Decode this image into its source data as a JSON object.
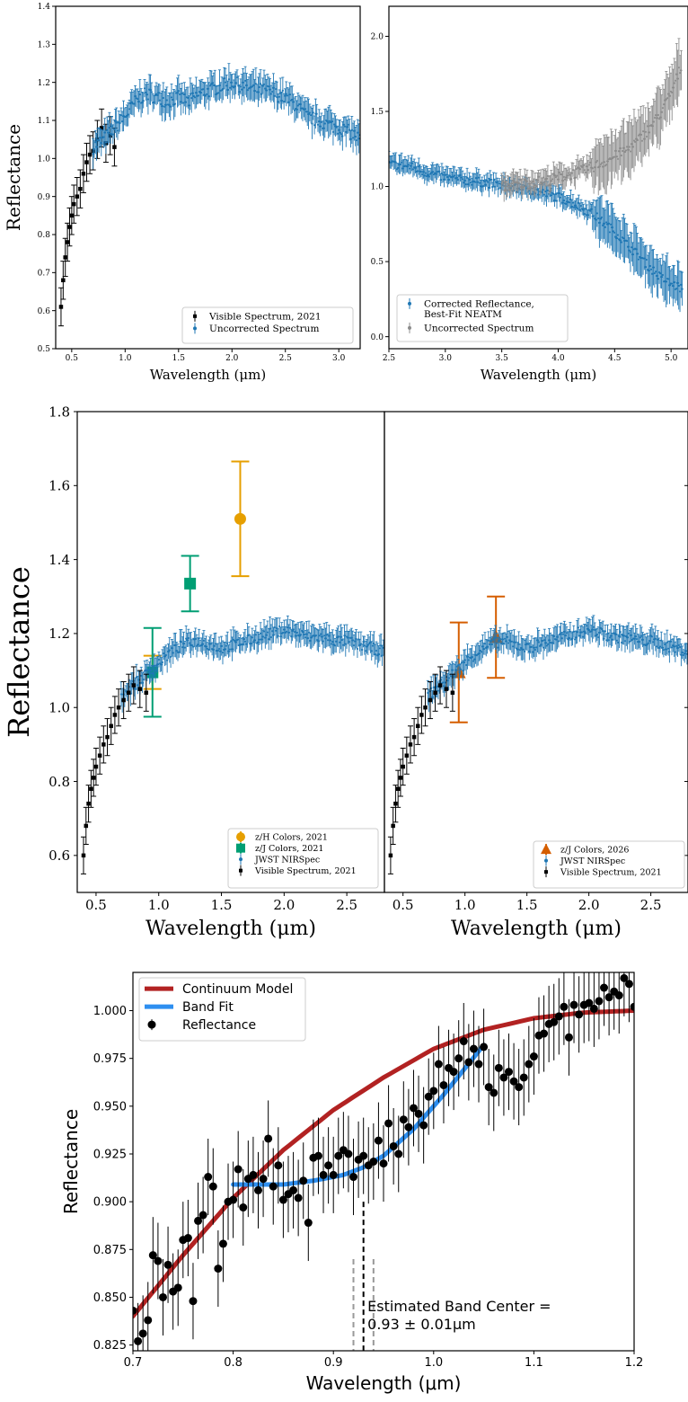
{
  "chart_data": [
    {
      "panel": "a-left",
      "type": "scatter",
      "xlabel": "Wavelength (μm)",
      "ylabel": "Reflectance",
      "xlim": [
        0.35,
        3.2
      ],
      "ylim": [
        0.5,
        1.4
      ],
      "xticks": [
        "0.5",
        "1.0",
        "1.5",
        "2.0",
        "2.5",
        "3.0"
      ],
      "yticks": [
        "0.5",
        "0.6",
        "0.7",
        "0.8",
        "0.9",
        "1.0",
        "1.1",
        "1.2",
        "1.3",
        "1.4"
      ],
      "legend_position": "lower-right",
      "series": [
        {
          "name": "Visible Spectrum, 2021",
          "color": "#000000",
          "marker": "square",
          "x": [
            0.4,
            0.42,
            0.44,
            0.46,
            0.48,
            0.5,
            0.52,
            0.55,
            0.58,
            0.61,
            0.64,
            0.67,
            0.7,
            0.74,
            0.78,
            0.82,
            0.86,
            0.9
          ],
          "y": [
            0.61,
            0.68,
            0.74,
            0.78,
            0.82,
            0.85,
            0.88,
            0.9,
            0.92,
            0.96,
            0.99,
            1.01,
            1.02,
            1.05,
            1.08,
            1.04,
            1.06,
            1.03
          ],
          "err": 0.05
        },
        {
          "name": "Uncorrected Spectrum",
          "color": "#1f77b4",
          "marker": "dot",
          "x": [
            0.7,
            0.8,
            0.9,
            1.0,
            1.1,
            1.2,
            1.3,
            1.4,
            1.5,
            1.6,
            1.7,
            1.8,
            1.9,
            2.0,
            2.1,
            2.2,
            2.3,
            2.4,
            2.5,
            2.6,
            2.7,
            2.8,
            2.9,
            3.0,
            3.1,
            3.2
          ],
          "y": [
            1.03,
            1.05,
            1.08,
            1.11,
            1.15,
            1.17,
            1.16,
            1.15,
            1.16,
            1.15,
            1.17,
            1.18,
            1.19,
            1.2,
            1.19,
            1.18,
            1.18,
            1.17,
            1.16,
            1.14,
            1.11,
            1.1,
            1.09,
            1.08,
            1.07,
            1.05
          ],
          "err": 0.03
        }
      ]
    },
    {
      "panel": "a-right",
      "type": "scatter",
      "xlabel": "Wavelength (μm)",
      "ylabel": "",
      "xlim": [
        2.5,
        5.15
      ],
      "ylim": [
        -0.08,
        2.2
      ],
      "xticks": [
        "2.5",
        "3.0",
        "3.5",
        "4.0",
        "4.5",
        "5.0"
      ],
      "yticks": [
        "0.0",
        "0.5",
        "1.0",
        "1.5",
        "2.0"
      ],
      "legend_position": "lower-left",
      "series": [
        {
          "name": "Corrected Reflectance,\nBest-Fit NEATM",
          "color": "#1f77b4",
          "marker": "dot",
          "x": [
            2.5,
            2.6,
            2.7,
            2.8,
            2.9,
            3.0,
            3.1,
            3.2,
            3.3,
            3.4,
            3.5,
            3.6,
            3.7,
            3.8,
            3.9,
            4.0,
            4.1,
            4.2,
            4.3,
            4.4,
            4.5,
            4.6,
            4.7,
            4.8,
            4.9,
            5.0,
            5.1
          ],
          "y": [
            1.15,
            1.14,
            1.13,
            1.1,
            1.08,
            1.06,
            1.05,
            1.04,
            1.03,
            1.02,
            1.0,
            0.99,
            0.98,
            0.97,
            0.95,
            0.93,
            0.9,
            0.86,
            0.82,
            0.76,
            0.7,
            0.62,
            0.55,
            0.47,
            0.4,
            0.35,
            0.32
          ],
          "err": 0.05
        },
        {
          "name": "Uncorrected Spectrum",
          "color": "#8c8c8c",
          "marker": "dot",
          "x": [
            3.5,
            3.6,
            3.7,
            3.8,
            3.9,
            4.0,
            4.1,
            4.2,
            4.3,
            4.4,
            4.5,
            4.6,
            4.7,
            4.8,
            4.9,
            5.0,
            5.1
          ],
          "y": [
            1.0,
            1.01,
            1.02,
            1.03,
            1.04,
            1.06,
            1.08,
            1.1,
            1.13,
            1.16,
            1.2,
            1.24,
            1.3,
            1.38,
            1.48,
            1.62,
            1.82
          ],
          "err": 0.06
        }
      ]
    },
    {
      "panel": "b-left",
      "type": "scatter",
      "xlabel": "Wavelength (μm)",
      "ylabel": "Reflectance",
      "xlim": [
        0.35,
        2.8
      ],
      "ylim": [
        0.5,
        1.8
      ],
      "xticks": [
        "0.5",
        "1.0",
        "1.5",
        "2.0",
        "2.5"
      ],
      "yticks": [
        "0.6",
        "0.8",
        "1.0",
        "1.2",
        "1.4",
        "1.6",
        "1.8"
      ],
      "legend_position": "lower-right",
      "series": [
        {
          "name": "z/H Colors, 2021",
          "color": "#e69f00",
          "marker": "circle",
          "x": [
            0.95,
            1.65
          ],
          "y": [
            1.095,
            1.51
          ],
          "err": [
            0.045,
            0.155
          ]
        },
        {
          "name": "z/J Colors, 2021",
          "color": "#009e73",
          "marker": "square",
          "x": [
            0.95,
            1.25
          ],
          "y": [
            1.095,
            1.335
          ],
          "err": [
            0.12,
            0.075
          ]
        },
        {
          "name": "JWST NIRSpec",
          "color": "#1f77b4",
          "marker": "dot",
          "x": [
            0.7,
            0.8,
            0.9,
            1.0,
            1.1,
            1.2,
            1.3,
            1.4,
            1.5,
            1.6,
            1.7,
            1.8,
            1.9,
            2.0,
            2.1,
            2.2,
            2.3,
            2.4,
            2.5,
            2.6,
            2.7,
            2.8
          ],
          "y": [
            1.03,
            1.06,
            1.09,
            1.12,
            1.15,
            1.17,
            1.18,
            1.17,
            1.16,
            1.17,
            1.18,
            1.19,
            1.2,
            1.21,
            1.2,
            1.19,
            1.19,
            1.18,
            1.18,
            1.17,
            1.16,
            1.15
          ],
          "err": 0.025
        },
        {
          "name": "Visible Spectrum, 2021",
          "color": "#000000",
          "marker": "square",
          "x": [
            0.4,
            0.42,
            0.44,
            0.46,
            0.48,
            0.5,
            0.53,
            0.56,
            0.59,
            0.62,
            0.65,
            0.68,
            0.72,
            0.76,
            0.8,
            0.85,
            0.9
          ],
          "y": [
            0.6,
            0.68,
            0.74,
            0.78,
            0.81,
            0.84,
            0.87,
            0.9,
            0.92,
            0.95,
            0.98,
            1.0,
            1.02,
            1.04,
            1.06,
            1.05,
            1.04
          ],
          "err": 0.05
        }
      ]
    },
    {
      "panel": "b-right",
      "type": "scatter",
      "xlabel": "Wavelength (μm)",
      "ylabel": "",
      "xlim": [
        0.35,
        2.8
      ],
      "ylim": [
        0.5,
        1.8
      ],
      "xticks": [
        "0.5",
        "1.0",
        "1.5",
        "2.0",
        "2.5"
      ],
      "yticks": [],
      "legend_position": "lower-right",
      "series": [
        {
          "name": "z/J Colors, 2026",
          "color": "#d55e00",
          "marker": "triangle",
          "x": [
            0.95,
            1.25
          ],
          "y": [
            1.095,
            1.19
          ],
          "err": [
            0.135,
            0.11
          ]
        },
        {
          "name": "JWST NIRSpec",
          "color": "#1f77b4",
          "marker": "dot",
          "x": [
            0.7,
            0.8,
            0.9,
            1.0,
            1.1,
            1.2,
            1.3,
            1.4,
            1.5,
            1.6,
            1.7,
            1.8,
            1.9,
            2.0,
            2.1,
            2.2,
            2.3,
            2.4,
            2.5,
            2.6,
            2.7,
            2.8
          ],
          "y": [
            1.03,
            1.06,
            1.09,
            1.12,
            1.15,
            1.17,
            1.18,
            1.17,
            1.16,
            1.17,
            1.18,
            1.19,
            1.2,
            1.21,
            1.2,
            1.19,
            1.19,
            1.18,
            1.18,
            1.17,
            1.16,
            1.15
          ],
          "err": 0.025
        },
        {
          "name": "Visible Spectrum, 2021",
          "color": "#000000",
          "marker": "square",
          "x": [
            0.4,
            0.42,
            0.44,
            0.46,
            0.48,
            0.5,
            0.53,
            0.56,
            0.59,
            0.62,
            0.65,
            0.68,
            0.72,
            0.76,
            0.8,
            0.85,
            0.9
          ],
          "y": [
            0.6,
            0.68,
            0.74,
            0.78,
            0.81,
            0.84,
            0.87,
            0.9,
            0.92,
            0.95,
            0.98,
            1.0,
            1.02,
            1.04,
            1.06,
            1.05,
            1.04
          ],
          "err": 0.05
        }
      ]
    },
    {
      "panel": "c",
      "type": "scatter",
      "xlabel": "Wavelength (μm)",
      "ylabel": "Reflectance",
      "xlim": [
        0.7,
        1.2
      ],
      "ylim": [
        0.822,
        1.02
      ],
      "xticks": [
        "0.7",
        "0.8",
        "0.9",
        "1.0",
        "1.1",
        "1.2"
      ],
      "yticks": [
        "0.825",
        "0.850",
        "0.875",
        "0.900",
        "0.925",
        "0.950",
        "0.975",
        "1.000"
      ],
      "legend_position": "upper-left",
      "annotation": {
        "line1": "Estimated Band Center =",
        "line2": "0.93 ± 0.01μm",
        "center": 0.93,
        "lo": 0.92,
        "hi": 0.94
      },
      "series": [
        {
          "name": "Continuum Model",
          "color": "#b22222",
          "type": "line",
          "x": [
            0.7,
            0.75,
            0.8,
            0.85,
            0.9,
            0.95,
            1.0,
            1.05,
            1.1,
            1.15,
            1.2
          ],
          "y": [
            0.84,
            0.872,
            0.902,
            0.927,
            0.948,
            0.965,
            0.98,
            0.99,
            0.996,
            0.999,
            1.0
          ]
        },
        {
          "name": "Band Fit",
          "color": "#2e8ff0",
          "type": "line",
          "x": [
            0.8,
            0.85,
            0.88,
            0.91,
            0.93,
            0.95,
            0.98,
            1.01,
            1.03,
            1.05
          ],
          "y": [
            0.909,
            0.909,
            0.911,
            0.914,
            0.918,
            0.924,
            0.938,
            0.956,
            0.969,
            0.982
          ]
        },
        {
          "name": "Reflectance",
          "color": "#000000",
          "marker": "circle",
          "x": [
            0.7,
            0.705,
            0.71,
            0.715,
            0.72,
            0.725,
            0.73,
            0.735,
            0.74,
            0.745,
            0.75,
            0.755,
            0.76,
            0.765,
            0.77,
            0.775,
            0.78,
            0.785,
            0.79,
            0.795,
            0.8,
            0.805,
            0.81,
            0.815,
            0.82,
            0.825,
            0.83,
            0.835,
            0.84,
            0.845,
            0.85,
            0.855,
            0.86,
            0.865,
            0.87,
            0.875,
            0.88,
            0.885,
            0.89,
            0.895,
            0.9,
            0.905,
            0.91,
            0.915,
            0.92,
            0.925,
            0.93,
            0.935,
            0.94,
            0.945,
            0.95,
            0.955,
            0.96,
            0.965,
            0.97,
            0.975,
            0.98,
            0.985,
            0.99,
            0.995,
            1.0,
            1.005,
            1.01,
            1.015,
            1.02,
            1.025,
            1.03,
            1.035,
            1.04,
            1.045,
            1.05,
            1.055,
            1.06,
            1.065,
            1.07,
            1.075,
            1.08,
            1.085,
            1.09,
            1.095,
            1.1,
            1.105,
            1.11,
            1.115,
            1.12,
            1.125,
            1.13,
            1.135,
            1.14,
            1.145,
            1.15,
            1.155,
            1.16,
            1.165,
            1.17,
            1.175,
            1.18,
            1.185,
            1.19,
            1.195,
            1.2
          ],
          "y": [
            0.843,
            0.827,
            0.831,
            0.838,
            0.872,
            0.869,
            0.85,
            0.867,
            0.853,
            0.855,
            0.88,
            0.881,
            0.848,
            0.89,
            0.893,
            0.913,
            0.908,
            0.865,
            0.878,
            0.9,
            0.901,
            0.917,
            0.897,
            0.912,
            0.914,
            0.906,
            0.912,
            0.933,
            0.908,
            0.919,
            0.901,
            0.904,
            0.906,
            0.902,
            0.911,
            0.889,
            0.923,
            0.924,
            0.914,
            0.919,
            0.914,
            0.924,
            0.927,
            0.925,
            0.913,
            0.922,
            0.924,
            0.919,
            0.921,
            0.932,
            0.92,
            0.941,
            0.929,
            0.925,
            0.943,
            0.939,
            0.949,
            0.946,
            0.94,
            0.955,
            0.958,
            0.972,
            0.961,
            0.97,
            0.968,
            0.975,
            0.984,
            0.973,
            0.98,
            0.972,
            0.981,
            0.96,
            0.957,
            0.97,
            0.965,
            0.968,
            0.963,
            0.96,
            0.965,
            0.972,
            0.976,
            0.987,
            0.988,
            0.993,
            0.994,
            0.997,
            1.002,
            0.986,
            1.003,
            0.998,
            1.003,
            1.004,
            1.001,
            1.005,
            1.012,
            1.007,
            1.01,
            1.008,
            1.017,
            1.014,
            1.002
          ],
          "err": 0.02
        }
      ]
    }
  ]
}
